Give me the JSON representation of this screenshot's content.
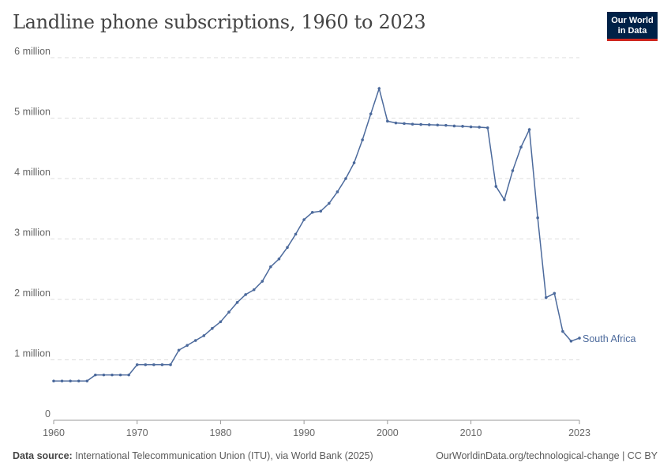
{
  "title": "Landline phone subscriptions, 1960 to 2023",
  "logo": {
    "line1": "Our World",
    "line2": "in Data"
  },
  "footer": {
    "source_label": "Data source:",
    "source_text": "International Telecommunication Union (ITU), via World Bank (2025)",
    "right": "OurWorldinData.org/technological-change | CC BY"
  },
  "colors": {
    "series": "#4c6a9c",
    "grid": "#dddddd",
    "text": "#666666"
  },
  "chart_data": {
    "type": "line",
    "title": "Landline phone subscriptions, 1960 to 2023",
    "xlim": [
      1960,
      2023
    ],
    "ylim": [
      0,
      6000000
    ],
    "x_ticks": [
      1960,
      1970,
      1980,
      1990,
      2000,
      2010,
      2023
    ],
    "y_ticks": [
      {
        "v": 0,
        "label": "0"
      },
      {
        "v": 1000000,
        "label": "1 million"
      },
      {
        "v": 2000000,
        "label": "2 million"
      },
      {
        "v": 3000000,
        "label": "3 million"
      },
      {
        "v": 4000000,
        "label": "4 million"
      },
      {
        "v": 5000000,
        "label": "5 million"
      },
      {
        "v": 6000000,
        "label": "6 million"
      }
    ],
    "grid": "horizontal dashed",
    "series": [
      {
        "name": "South Africa",
        "x": [
          1960,
          1961,
          1962,
          1963,
          1964,
          1965,
          1966,
          1967,
          1968,
          1969,
          1970,
          1971,
          1972,
          1973,
          1974,
          1975,
          1976,
          1977,
          1978,
          1979,
          1980,
          1981,
          1982,
          1983,
          1984,
          1985,
          1986,
          1987,
          1988,
          1989,
          1990,
          1991,
          1992,
          1993,
          1994,
          1995,
          1996,
          1997,
          1998,
          1999,
          2000,
          2001,
          2002,
          2003,
          2004,
          2005,
          2006,
          2007,
          2008,
          2009,
          2010,
          2011,
          2012,
          2013,
          2014,
          2015,
          2016,
          2017,
          2018,
          2019,
          2020,
          2021,
          2022,
          2023
        ],
        "values": [
          650000,
          650000,
          650000,
          650000,
          650000,
          750000,
          750000,
          750000,
          750000,
          750000,
          920000,
          920000,
          920000,
          920000,
          920000,
          1160000,
          1240000,
          1320000,
          1400000,
          1520000,
          1630000,
          1790000,
          1950000,
          2080000,
          2160000,
          2300000,
          2540000,
          2670000,
          2860000,
          3080000,
          3320000,
          3440000,
          3460000,
          3590000,
          3780000,
          4000000,
          4260000,
          4640000,
          5070000,
          5490000,
          4950000,
          4920000,
          4910000,
          4900000,
          4895000,
          4890000,
          4885000,
          4880000,
          4870000,
          4865000,
          4855000,
          4850000,
          4840000,
          3870000,
          3650000,
          4130000,
          4520000,
          4810000,
          3350000,
          2030000,
          2100000,
          1470000,
          1310000,
          1360000
        ]
      }
    ]
  }
}
